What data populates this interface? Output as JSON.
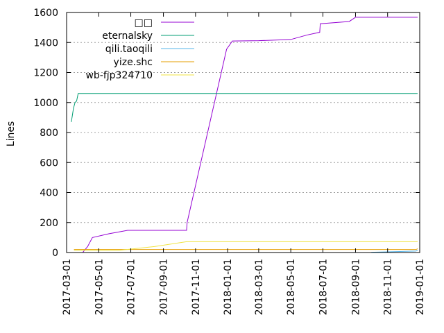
{
  "chart_data": {
    "type": "line",
    "title": "",
    "xlabel": "",
    "ylabel": "Lines",
    "xlim": [
      "2017-03-01",
      "2019-01-01"
    ],
    "ylim": [
      0,
      1600
    ],
    "yticks": [
      0,
      200,
      400,
      600,
      800,
      1000,
      1200,
      1400,
      1600
    ],
    "xticks": [
      "2017-03-01",
      "2017-05-01",
      "2017-07-01",
      "2017-09-01",
      "2017-11-01",
      "2018-01-01",
      "2018-03-01",
      "2018-05-01",
      "2018-07-01",
      "2018-09-01",
      "2018-11-01",
      "2019-01-01"
    ],
    "grid": true,
    "legend_position": "top-left",
    "series": [
      {
        "name": "□□",
        "color": "#9400d3",
        "points": [
          [
            "2017-04-01",
            2
          ],
          [
            "2017-04-10",
            40
          ],
          [
            "2017-04-19",
            100
          ],
          [
            "2017-05-20",
            125
          ],
          [
            "2017-06-25",
            148
          ],
          [
            "2017-10-15",
            148
          ],
          [
            "2017-10-16",
            200
          ],
          [
            "2017-12-30",
            1355
          ],
          [
            "2018-01-10",
            1410
          ],
          [
            "2018-03-01",
            1412
          ],
          [
            "2018-04-15",
            1418
          ],
          [
            "2018-05-01",
            1420
          ],
          [
            "2018-06-01",
            1450
          ],
          [
            "2018-06-25",
            1468
          ],
          [
            "2018-06-26",
            1525
          ],
          [
            "2018-08-20",
            1540
          ],
          [
            "2018-09-01",
            1568
          ],
          [
            "2018-12-28",
            1568
          ]
        ]
      },
      {
        "name": "eternalsky",
        "color": "#009e73",
        "points": [
          [
            "2017-03-10",
            870
          ],
          [
            "2017-03-14",
            960
          ],
          [
            "2017-03-17",
            1000
          ],
          [
            "2017-03-20",
            1010
          ],
          [
            "2017-03-23",
            1060
          ],
          [
            "2018-12-28",
            1060
          ]
        ]
      },
      {
        "name": "qili.taoqili",
        "color": "#56b4e9",
        "points": [
          [
            "2018-10-01",
            2
          ],
          [
            "2018-12-25",
            10
          ],
          [
            "2018-12-28",
            15
          ]
        ]
      },
      {
        "name": "yize.shc",
        "color": "#e69f00",
        "points": [
          [
            "2017-03-15",
            20
          ],
          [
            "2018-12-25",
            20
          ],
          [
            "2018-12-28",
            25
          ]
        ]
      },
      {
        "name": "wb-fjp324710",
        "color": "#f0e442",
        "points": [
          [
            "2017-03-15",
            15
          ],
          [
            "2017-06-10",
            15
          ],
          [
            "2017-08-15",
            40
          ],
          [
            "2017-10-15",
            72
          ],
          [
            "2018-12-28",
            72
          ]
        ]
      }
    ]
  }
}
